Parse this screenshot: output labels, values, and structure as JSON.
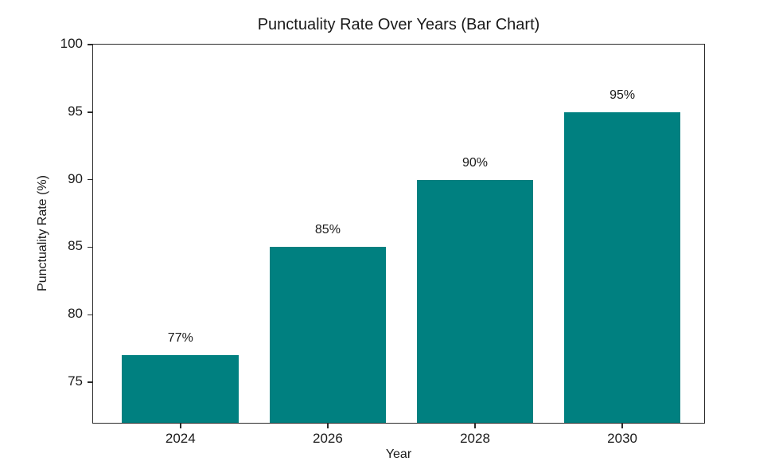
{
  "chart_data": {
    "type": "bar",
    "title": "Punctuality Rate Over Years (Bar Chart)",
    "xlabel": "Year",
    "ylabel": "Punctuality Rate (%)",
    "categories": [
      "2024",
      "2026",
      "2028",
      "2030"
    ],
    "values": [
      77,
      85,
      90,
      95
    ],
    "data_labels": [
      "77%",
      "85%",
      "90%",
      "95%"
    ],
    "ylim": [
      72,
      100
    ],
    "yticks": [
      75,
      80,
      85,
      90,
      95,
      100
    ],
    "bar_color": "#008080",
    "axis_color": "#2b2b2b",
    "text_color": "#1a1a1a",
    "grid": false,
    "legend": "none",
    "layout": {
      "x_start_frac": 0.143,
      "x_step_frac": 0.241,
      "bar_width_frac": 0.191
    }
  }
}
